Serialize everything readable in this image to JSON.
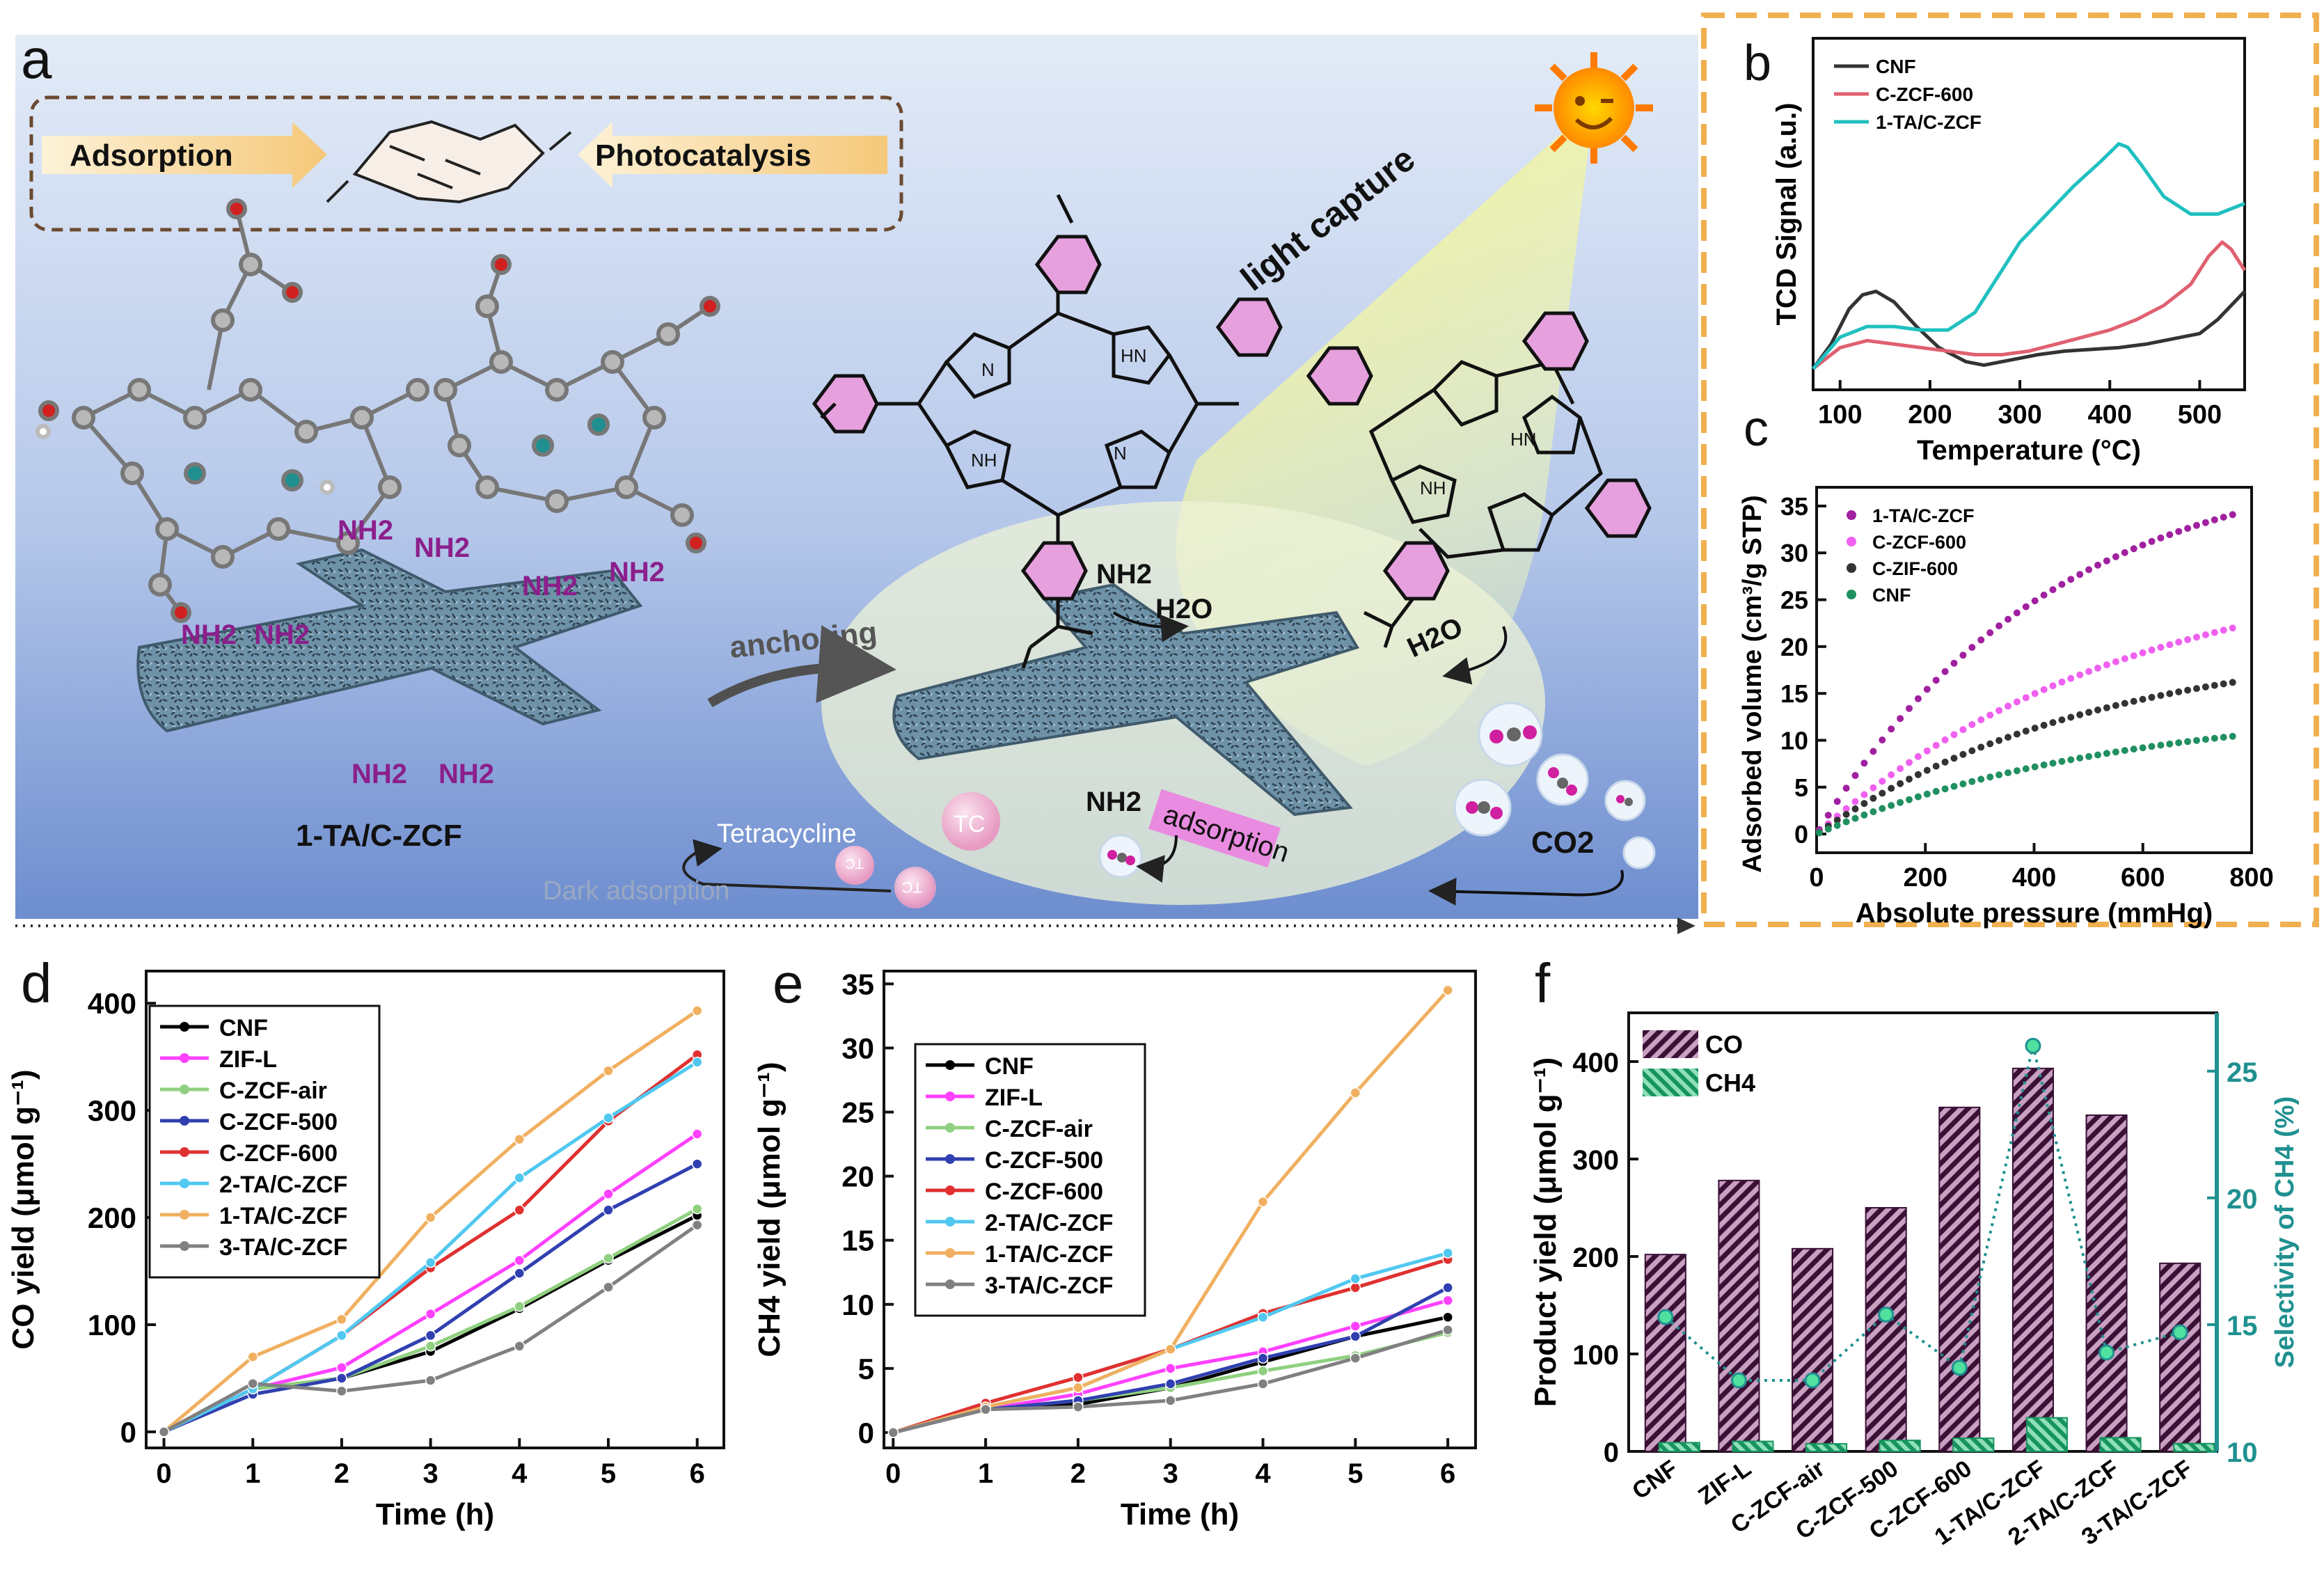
{
  "panel_labels": {
    "a": "a",
    "b": "b",
    "c": "c",
    "d": "d",
    "e": "e",
    "f": "f"
  },
  "schematic": {
    "adsorption": "Adsorption",
    "photocatalysis": "Photocatalysis",
    "light_capture": "light capture",
    "anchoring": "anchoring",
    "material": "1-TA/C-ZCF",
    "nh2": "NH2",
    "h2o": "H2O",
    "adsorption_tag": "adsorption",
    "tetracycline": "Tetracycline",
    "dark_adsorption": "Dark adsorption",
    "co2": "CO2",
    "tc": "TC",
    "nh": "NH",
    "hn": "HN",
    "n": "N"
  },
  "colors": {
    "cnf": "#000000",
    "zifl": "#ff40ff",
    "czcfair": "#90d080",
    "czcf500": "#3040b0",
    "czcf600": "#e03030",
    "ta2": "#50c8f0",
    "ta1": "#f0b060",
    "ta3": "#808080",
    "b_cnf": "#333333",
    "b_czcf600": "#e06070",
    "b_ta1": "#20c0c0",
    "c_ta1": "#a020a0",
    "c_czcf600": "#f060f0",
    "c_czif600": "#333333",
    "c_cnf": "#209060",
    "co_bar": "#5a2050",
    "ch4_bar": "#20a070",
    "selectivity": "#209090",
    "bg_top": "#dce6f5",
    "bg_bottom": "#6f8fd0",
    "dash_orange": "#f0b050"
  },
  "chart_data": [
    {
      "panel": "b",
      "type": "line",
      "xlabel": "Temperature (°C)",
      "ylabel": "TCD Signal (a.u.)",
      "xlim": [
        70,
        550
      ],
      "xticks": [
        100,
        200,
        300,
        400,
        500
      ],
      "ylim": [
        0,
        1
      ],
      "series": [
        {
          "name": "CNF",
          "x": [
            70,
            90,
            110,
            125,
            140,
            160,
            185,
            210,
            240,
            260,
            290,
            320,
            350,
            380,
            410,
            440,
            470,
            500,
            520,
            550
          ],
          "y": [
            0.06,
            0.13,
            0.23,
            0.27,
            0.28,
            0.25,
            0.18,
            0.12,
            0.08,
            0.07,
            0.085,
            0.1,
            0.11,
            0.115,
            0.12,
            0.13,
            0.145,
            0.16,
            0.2,
            0.28
          ]
        },
        {
          "name": "C-ZCF-600",
          "x": [
            70,
            100,
            130,
            160,
            190,
            220,
            250,
            280,
            310,
            340,
            370,
            400,
            430,
            460,
            490,
            510,
            525,
            535,
            550
          ],
          "y": [
            0.06,
            0.12,
            0.14,
            0.13,
            0.12,
            0.11,
            0.1,
            0.1,
            0.11,
            0.13,
            0.15,
            0.17,
            0.2,
            0.24,
            0.3,
            0.38,
            0.42,
            0.4,
            0.34
          ]
        },
        {
          "name": "1-TA/C-ZCF",
          "x": [
            70,
            100,
            130,
            160,
            190,
            220,
            250,
            275,
            300,
            330,
            360,
            390,
            410,
            420,
            435,
            460,
            490,
            520,
            550
          ],
          "y": [
            0.06,
            0.15,
            0.18,
            0.18,
            0.17,
            0.17,
            0.22,
            0.32,
            0.42,
            0.5,
            0.58,
            0.65,
            0.7,
            0.69,
            0.64,
            0.55,
            0.5,
            0.5,
            0.53
          ]
        }
      ]
    },
    {
      "panel": "c",
      "type": "scatter",
      "xlabel": "Absolute pressure (mmHg)",
      "ylabel": "Adsorbed volume (cm³/g STP)",
      "xlim": [
        0,
        800
      ],
      "ylim": [
        -2,
        37
      ],
      "xticks": [
        0,
        200,
        400,
        600,
        800
      ],
      "yticks": [
        0,
        5,
        10,
        15,
        20,
        25,
        30,
        35
      ],
      "model": "y = a*(1-exp(-x/b))",
      "series": [
        {
          "name": "1-TA/C-ZCF",
          "a": 41,
          "b": 430,
          "x_max": 765
        },
        {
          "name": "C-ZCF-600",
          "a": 30,
          "b": 580,
          "x_max": 765
        },
        {
          "name": "C-ZIF-600",
          "a": 21,
          "b": 520,
          "x_max": 765
        },
        {
          "name": "CNF",
          "a": 14,
          "b": 560,
          "x_max": 765
        }
      ]
    },
    {
      "panel": "d",
      "type": "line",
      "xlabel": "Time (h)",
      "ylabel": "CO yield (μmol g⁻¹)",
      "x": [
        0,
        1,
        2,
        3,
        4,
        5,
        6
      ],
      "xlim": [
        -0.2,
        6.3
      ],
      "ylim": [
        -15,
        430
      ],
      "yticks": [
        0,
        100,
        200,
        300,
        400
      ],
      "series": [
        {
          "name": "CNF",
          "values": [
            0,
            40,
            50,
            75,
            115,
            160,
            202
          ]
        },
        {
          "name": "ZIF-L",
          "values": [
            0,
            40,
            60,
            110,
            160,
            222,
            278
          ]
        },
        {
          "name": "C-ZCF-air",
          "values": [
            0,
            40,
            50,
            80,
            117,
            162,
            208
          ]
        },
        {
          "name": "C-ZCF-500",
          "values": [
            0,
            35,
            50,
            90,
            148,
            207,
            250
          ]
        },
        {
          "name": "C-ZCF-600",
          "values": [
            0,
            40,
            90,
            153,
            207,
            290,
            352
          ]
        },
        {
          "name": "2-TA/C-ZCF",
          "values": [
            0,
            40,
            90,
            158,
            237,
            293,
            345
          ]
        },
        {
          "name": "1-TA/C-ZCF",
          "values": [
            0,
            70,
            105,
            200,
            273,
            337,
            393
          ]
        },
        {
          "name": "3-TA/C-ZCF",
          "values": [
            0,
            45,
            38,
            48,
            80,
            135,
            193
          ]
        }
      ]
    },
    {
      "panel": "e",
      "type": "line",
      "xlabel": "Time (h)",
      "ylabel": "CH4 yield (μmol g⁻¹)",
      "x": [
        0,
        1,
        2,
        3,
        4,
        5,
        6
      ],
      "xlim": [
        -0.1,
        6.3
      ],
      "ylim": [
        -1.2,
        36
      ],
      "yticks": [
        0,
        5,
        10,
        15,
        20,
        25,
        30,
        35
      ],
      "series": [
        {
          "name": "CNF",
          "values": [
            0,
            1.8,
            2.2,
            3.5,
            5.5,
            7.5,
            9.0
          ]
        },
        {
          "name": "ZIF-L",
          "values": [
            0,
            1.8,
            3.0,
            5.0,
            6.3,
            8.3,
            10.3
          ]
        },
        {
          "name": "C-ZCF-air",
          "values": [
            0,
            1.8,
            2.5,
            3.5,
            4.8,
            6.0,
            7.8
          ]
        },
        {
          "name": "C-ZCF-500",
          "values": [
            0,
            1.8,
            2.5,
            3.8,
            5.8,
            7.5,
            11.3
          ]
        },
        {
          "name": "C-ZCF-600",
          "values": [
            0,
            2.3,
            4.3,
            6.5,
            9.3,
            11.3,
            13.5
          ]
        },
        {
          "name": "2-TA/C-ZCF",
          "values": [
            0,
            2.0,
            3.5,
            6.5,
            9.0,
            12.0,
            14.0
          ]
        },
        {
          "name": "1-TA/C-ZCF",
          "values": [
            0,
            2.0,
            3.5,
            6.5,
            18.0,
            26.5,
            34.5
          ]
        },
        {
          "name": "3-TA/C-ZCF",
          "values": [
            0,
            1.8,
            2.0,
            2.5,
            3.8,
            5.8,
            8.0
          ]
        }
      ]
    },
    {
      "panel": "f",
      "type": "bar",
      "categories": [
        "CNF",
        "ZIF-L",
        "C-ZCF-air",
        "C-ZCF-500",
        "C-ZCF-600",
        "1-TA/C-ZCF",
        "2-TA/C-ZCF",
        "3-TA/C-ZCF"
      ],
      "ylabel": "Product yield (μmol g⁻¹)",
      "y2label": "Selectivity of CH4 (%)",
      "ylim": [
        0,
        450
      ],
      "yticks": [
        0,
        100,
        200,
        300,
        400
      ],
      "y2lim": [
        10,
        27.3
      ],
      "y2ticks": [
        10,
        15,
        20,
        25
      ],
      "series": [
        {
          "name": "CO",
          "values": [
            202,
            278,
            208,
            250,
            353,
            393,
            345,
            193
          ]
        },
        {
          "name": "CH4",
          "values": [
            9,
            10.3,
            7.8,
            11.3,
            13.5,
            34.5,
            14,
            8
          ]
        },
        {
          "name": "Selectivity of CH4",
          "values": [
            15.3,
            12.8,
            12.8,
            15.4,
            13.3,
            26,
            13.9,
            14.7
          ]
        }
      ]
    }
  ]
}
